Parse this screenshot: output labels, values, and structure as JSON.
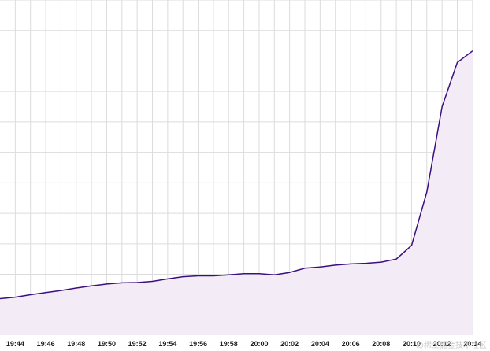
{
  "chart_data": {
    "type": "area",
    "title": "",
    "xlabel": "",
    "ylabel": "",
    "x_tick_labels": [
      "19:44",
      "19:46",
      "19:48",
      "19:50",
      "19:52",
      "19:54",
      "19:56",
      "19:58",
      "20:00",
      "20:02",
      "20:04",
      "20:06",
      "20:08",
      "20:10",
      "20:12",
      "20:14"
    ],
    "ylim": [
      0,
      11
    ],
    "grid": true,
    "legend": "none",
    "y_tick_labels_visible": false,
    "series": [
      {
        "x": [
          "19:43",
          "19:44",
          "19:45",
          "19:46",
          "19:47",
          "19:48",
          "19:49",
          "19:50",
          "19:51",
          "19:52",
          "19:53",
          "19:54",
          "19:55",
          "19:56",
          "19:57",
          "19:58",
          "19:59",
          "20:00",
          "20:01",
          "20:02",
          "20:03",
          "20:04",
          "20:05",
          "20:06",
          "20:07",
          "20:08",
          "20:09",
          "20:10",
          "20:11",
          "20:12",
          "20:13",
          "20:14"
        ],
        "values": [
          1.2,
          1.25,
          1.33,
          1.4,
          1.47,
          1.55,
          1.62,
          1.68,
          1.72,
          1.73,
          1.77,
          1.85,
          1.92,
          1.95,
          1.95,
          1.98,
          2.02,
          2.02,
          1.98,
          2.06,
          2.2,
          2.24,
          2.3,
          2.34,
          2.36,
          2.4,
          2.5,
          2.95,
          4.7,
          7.5,
          8.95,
          9.33
        ],
        "line_color": "#3b0f80",
        "fill_color": "#f3ecf7"
      }
    ]
  },
  "watermark": "@稀土掘金技术社区"
}
